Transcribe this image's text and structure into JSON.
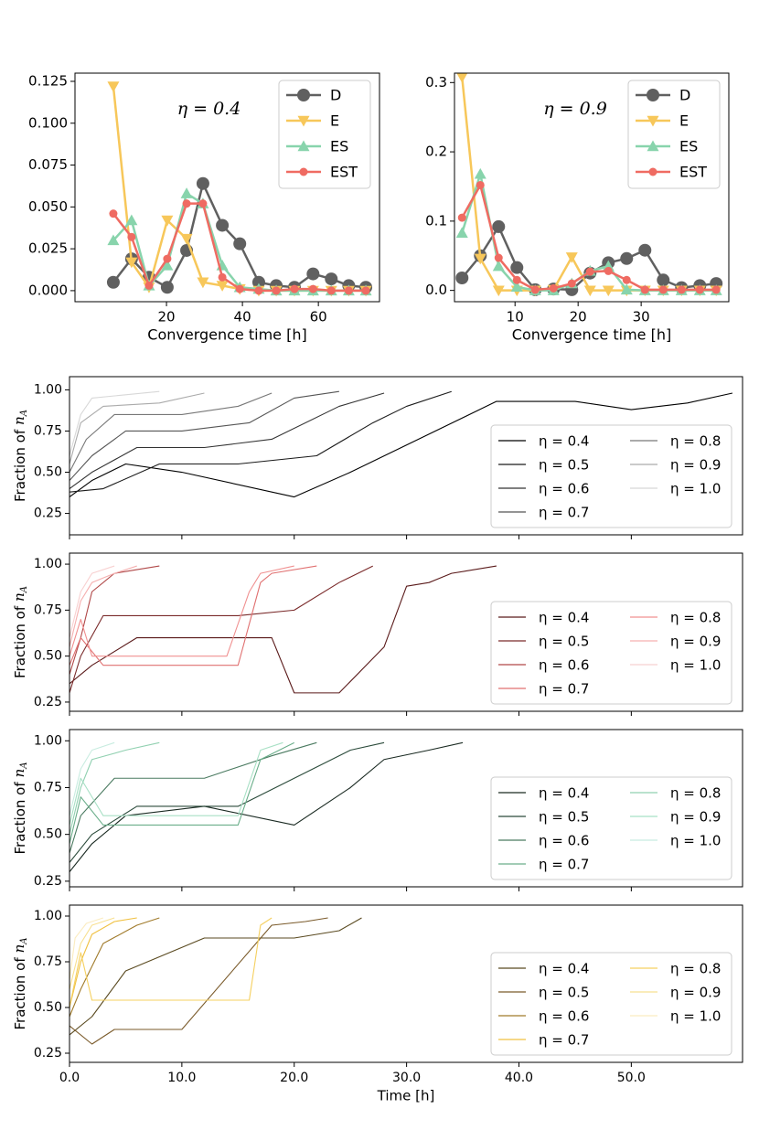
{
  "chart_data": [
    {
      "type": "line",
      "annotation": "η = 0.4",
      "xlabel": "Convergence time [h]",
      "x": [
        6,
        10.8,
        15.4,
        20.2,
        25.3,
        29.6,
        34.7,
        39.3,
        44.3,
        48.9,
        53.7,
        58.6,
        63.4,
        68,
        72.5
      ],
      "xlim": [
        -4.1,
        76.1
      ],
      "xticks": [
        20,
        40,
        60
      ],
      "ylim": [
        -0.0066,
        0.1299
      ],
      "yticks": [
        {
          "value": 0,
          "label": "0.000"
        },
        {
          "value": 0.025,
          "label": "0.025"
        },
        {
          "value": 0.05,
          "label": "0.050"
        },
        {
          "value": 0.075,
          "label": "0.075"
        },
        {
          "value": 0.1,
          "label": "0.100"
        },
        {
          "value": 0.125,
          "label": "0.125"
        }
      ],
      "legend": "upper right",
      "series": [
        {
          "name": "D",
          "color": "#606060",
          "marker": "circle",
          "values": [
            0.005,
            0.019,
            0.008,
            0.002,
            0.024,
            0.064,
            0.039,
            0.028,
            0.005,
            0.003,
            0.002,
            0.01,
            0.007,
            0.003,
            0.002
          ]
        },
        {
          "name": "E",
          "color": "#f7c75a",
          "marker": "triangle-down",
          "values": [
            0.122,
            0.017,
            0.002,
            0.042,
            0.031,
            0.005,
            0.003,
            0.001,
            0,
            0,
            0,
            0,
            0,
            0,
            0
          ]
        },
        {
          "name": "ES",
          "color": "#88d4ac",
          "marker": "triangle-up",
          "values": [
            0.03,
            0.042,
            0.003,
            0.015,
            0.058,
            0.052,
            0.015,
            0.002,
            0.001,
            0,
            0,
            0,
            0,
            0,
            0
          ]
        },
        {
          "name": "EST",
          "color": "#ef6b62",
          "marker": "dot",
          "values": [
            0.046,
            0.032,
            0.003,
            0.019,
            0.052,
            0.052,
            0.008,
            0.001,
            0,
            0,
            0.001,
            0.001,
            0,
            0,
            0
          ]
        }
      ]
    },
    {
      "type": "line",
      "annotation": "η = 0.9",
      "xlabel": "Convergence time [h]",
      "x": [
        1.6,
        4.5,
        7.4,
        10.3,
        13.2,
        16.1,
        19,
        21.9,
        24.8,
        27.7,
        30.6,
        33.5,
        36.4,
        39.3,
        41.9
      ],
      "xlim": [
        0.4,
        43.9
      ],
      "xticks": [
        10,
        20,
        30
      ],
      "ylim": [
        -0.0163,
        0.3136
      ],
      "yticks": [
        {
          "value": 0,
          "label": "0.0"
        },
        {
          "value": 0.1,
          "label": "0.1"
        },
        {
          "value": 0.2,
          "label": "0.2"
        },
        {
          "value": 0.3,
          "label": "0.3"
        }
      ],
      "legend": "upper right",
      "series": [
        {
          "name": "D",
          "color": "#606060",
          "marker": "circle",
          "values": [
            0.018,
            0.05,
            0.092,
            0.033,
            0.001,
            0.002,
            0.001,
            0.025,
            0.04,
            0.046,
            0.058,
            0.015,
            0.004,
            0.007,
            0.01
          ]
        },
        {
          "name": "E",
          "color": "#f7c75a",
          "marker": "triangle-down",
          "values": [
            0.308,
            0.046,
            0,
            0,
            0,
            0.001,
            0.048,
            0,
            0,
            0,
            0,
            0,
            0,
            0,
            0
          ]
        },
        {
          "name": "ES",
          "color": "#88d4ac",
          "marker": "triangle-up",
          "values": [
            0.083,
            0.168,
            0.035,
            0.005,
            0,
            0,
            0.01,
            0.028,
            0.035,
            0.001,
            0,
            0,
            0,
            0,
            0
          ]
        },
        {
          "name": "EST",
          "color": "#ef6b62",
          "marker": "dot",
          "values": [
            0.105,
            0.152,
            0.047,
            0.015,
            0.001,
            0.003,
            0.01,
            0.027,
            0.028,
            0.015,
            0.001,
            0.001,
            0.001,
            0.001,
            0.001
          ]
        }
      ]
    },
    {
      "type": "line",
      "ylabel": "Fraction of",
      "ylabel_var": "n",
      "ylabel_sub": "A",
      "xlim": [
        0,
        59.9
      ],
      "xticks": [
        0,
        10,
        20,
        30,
        40,
        50
      ],
      "xtick_labels": false,
      "ylim": [
        0.12,
        1.08
      ],
      "yticks": [
        {
          "value": 0.25,
          "label": "0.25"
        },
        {
          "value": 0.5,
          "label": "0.50"
        },
        {
          "value": 0.75,
          "label": "0.75"
        },
        {
          "value": 1,
          "label": "1.00"
        }
      ],
      "legend": "lower right",
      "legend_columns": 2,
      "series": [
        {
          "name": "η = 0.4",
          "color": "#000000",
          "x": [
            0,
            2,
            5,
            10,
            20,
            25,
            38,
            45,
            50,
            55,
            59
          ],
          "values": [
            0.35,
            0.45,
            0.55,
            0.5,
            0.35,
            0.5,
            0.93,
            0.93,
            0.88,
            0.92,
            0.98
          ]
        },
        {
          "name": "η = 0.5",
          "color": "#1a1a1a",
          "x": [
            0,
            3,
            8,
            15,
            22,
            27,
            30,
            34
          ],
          "values": [
            0.38,
            0.4,
            0.55,
            0.55,
            0.6,
            0.8,
            0.9,
            0.99
          ]
        },
        {
          "name": "η = 0.6",
          "color": "#333333",
          "x": [
            0,
            2,
            6,
            12,
            18,
            24,
            28
          ],
          "values": [
            0.4,
            0.5,
            0.65,
            0.65,
            0.7,
            0.9,
            0.98
          ]
        },
        {
          "name": "η = 0.7",
          "color": "#555555",
          "x": [
            0,
            2,
            5,
            10,
            16,
            20,
            24
          ],
          "values": [
            0.45,
            0.6,
            0.75,
            0.75,
            0.8,
            0.95,
            0.99
          ]
        },
        {
          "name": "η = 0.8",
          "color": "#777777",
          "x": [
            0,
            1.5,
            4,
            10,
            15,
            18
          ],
          "values": [
            0.5,
            0.7,
            0.85,
            0.85,
            0.9,
            0.98
          ]
        },
        {
          "name": "η = 0.9",
          "color": "#aaaaaa",
          "x": [
            0,
            1,
            3,
            8,
            12
          ],
          "values": [
            0.55,
            0.8,
            0.9,
            0.92,
            0.98
          ]
        },
        {
          "name": "η = 1.0",
          "color": "#d8d8d8",
          "x": [
            0,
            1,
            2,
            5,
            8
          ],
          "values": [
            0.6,
            0.85,
            0.95,
            0.97,
            0.99
          ]
        }
      ]
    },
    {
      "type": "line",
      "ylabel": "Fraction of",
      "ylabel_var": "n",
      "ylabel_sub": "A",
      "xlim": [
        0,
        59.9
      ],
      "xticks": [
        0,
        10,
        20,
        30,
        40,
        50
      ],
      "xtick_labels": false,
      "ylim": [
        0.2,
        1.06
      ],
      "yticks": [
        {
          "value": 0.25,
          "label": "0.25"
        },
        {
          "value": 0.5,
          "label": "0.50"
        },
        {
          "value": 0.75,
          "label": "0.75"
        },
        {
          "value": 1,
          "label": "1.00"
        }
      ],
      "legend": "lower right",
      "legend_columns": 2,
      "series": [
        {
          "name": "η = 0.4",
          "color": "#5a1a1a",
          "x": [
            0,
            2,
            6,
            18,
            20,
            24,
            28,
            30,
            32,
            34,
            38
          ],
          "values": [
            0.35,
            0.45,
            0.6,
            0.6,
            0.3,
            0.3,
            0.55,
            0.88,
            0.9,
            0.95,
            0.99
          ]
        },
        {
          "name": "η = 0.5",
          "color": "#7a2a2a",
          "x": [
            0,
            1,
            3,
            15,
            20,
            24,
            27
          ],
          "values": [
            0.3,
            0.5,
            0.72,
            0.72,
            0.75,
            0.9,
            0.99
          ]
        },
        {
          "name": "η = 0.6",
          "color": "#b04848",
          "x": [
            0,
            1,
            2,
            4,
            6,
            8
          ],
          "values": [
            0.4,
            0.6,
            0.85,
            0.95,
            0.97,
            0.99
          ]
        },
        {
          "name": "η = 0.7",
          "color": "#e07070",
          "x": [
            0,
            1,
            3,
            15,
            17,
            18,
            22
          ],
          "values": [
            0.45,
            0.6,
            0.45,
            0.45,
            0.9,
            0.95,
            0.99
          ]
        },
        {
          "name": "η = 0.8",
          "color": "#f09090",
          "x": [
            0,
            1,
            2,
            14,
            16,
            17,
            20
          ],
          "values": [
            0.5,
            0.7,
            0.5,
            0.5,
            0.85,
            0.95,
            0.99
          ]
        },
        {
          "name": "η = 0.9",
          "color": "#f5b0b0",
          "x": [
            0,
            1,
            2,
            4,
            6
          ],
          "values": [
            0.55,
            0.8,
            0.9,
            0.95,
            0.99
          ]
        },
        {
          "name": "η = 1.0",
          "color": "#f8d0d0",
          "x": [
            0,
            1,
            2,
            4
          ],
          "values": [
            0.6,
            0.85,
            0.95,
            0.99
          ]
        }
      ]
    },
    {
      "type": "line",
      "ylabel": "Fraction of",
      "ylabel_var": "n",
      "ylabel_sub": "A",
      "xlim": [
        0,
        59.9
      ],
      "xticks": [
        0,
        10,
        20,
        30,
        40,
        50
      ],
      "xtick_labels": false,
      "ylim": [
        0.22,
        1.06
      ],
      "yticks": [
        {
          "value": 0.25,
          "label": "0.25"
        },
        {
          "value": 0.5,
          "label": "0.50"
        },
        {
          "value": 0.75,
          "label": "0.75"
        },
        {
          "value": 1,
          "label": "1.00"
        }
      ],
      "legend": "lower right",
      "legend_columns": 2,
      "series": [
        {
          "name": "η = 0.4",
          "color": "#1a2a22",
          "x": [
            0,
            2,
            5,
            12,
            20,
            25,
            28,
            32,
            35
          ],
          "values": [
            0.3,
            0.45,
            0.6,
            0.65,
            0.55,
            0.75,
            0.9,
            0.95,
            0.99
          ]
        },
        {
          "name": "η = 0.5",
          "color": "#2a4a3a",
          "x": [
            0,
            2,
            6,
            15,
            20,
            25,
            28
          ],
          "values": [
            0.35,
            0.5,
            0.65,
            0.65,
            0.8,
            0.95,
            0.99
          ]
        },
        {
          "name": "η = 0.6",
          "color": "#4a7a60",
          "x": [
            0,
            1,
            4,
            12,
            18,
            22
          ],
          "values": [
            0.4,
            0.6,
            0.8,
            0.8,
            0.92,
            0.99
          ]
        },
        {
          "name": "η = 0.7",
          "color": "#6aae8a",
          "x": [
            0,
            1,
            3,
            15,
            17,
            20
          ],
          "values": [
            0.45,
            0.7,
            0.55,
            0.55,
            0.9,
            0.99
          ]
        },
        {
          "name": "η = 0.8",
          "color": "#90d0b0",
          "x": [
            0,
            1,
            2,
            5,
            8
          ],
          "values": [
            0.5,
            0.75,
            0.9,
            0.95,
            0.99
          ]
        },
        {
          "name": "η = 0.9",
          "color": "#a8e0c5",
          "x": [
            0,
            1,
            3,
            15,
            17,
            19
          ],
          "values": [
            0.55,
            0.8,
            0.6,
            0.6,
            0.95,
            0.99
          ]
        },
        {
          "name": "η = 1.0",
          "color": "#c8ece0",
          "x": [
            0,
            1,
            2,
            4
          ],
          "values": [
            0.6,
            0.85,
            0.95,
            0.99
          ]
        }
      ]
    },
    {
      "type": "line",
      "ylabel": "Fraction of",
      "ylabel_var": "n",
      "ylabel_sub": "A",
      "xlabel": "Time [h]",
      "xlim": [
        0,
        59.9
      ],
      "xticks": [
        {
          "value": 0,
          "label": "0.0"
        },
        {
          "value": 10,
          "label": "10.0"
        },
        {
          "value": 20,
          "label": "20.0"
        },
        {
          "value": 30,
          "label": "30.0"
        },
        {
          "value": 40,
          "label": "40.0"
        },
        {
          "value": 50,
          "label": "50.0"
        }
      ],
      "ylim": [
        0.2,
        1.06
      ],
      "yticks": [
        {
          "value": 0.25,
          "label": "0.25"
        },
        {
          "value": 0.5,
          "label": "0.50"
        },
        {
          "value": 0.75,
          "label": "0.75"
        },
        {
          "value": 1,
          "label": "1.00"
        }
      ],
      "legend": "lower right",
      "legend_columns": 2,
      "series": [
        {
          "name": "η = 0.4",
          "color": "#5a4a20",
          "x": [
            0,
            2,
            5,
            12,
            20,
            24,
            26
          ],
          "values": [
            0.35,
            0.45,
            0.7,
            0.88,
            0.88,
            0.92,
            0.99
          ]
        },
        {
          "name": "η = 0.5",
          "color": "#7a5a2a",
          "x": [
            0,
            2,
            4,
            10,
            18,
            21,
            23
          ],
          "values": [
            0.4,
            0.3,
            0.38,
            0.38,
            0.95,
            0.97,
            0.99
          ]
        },
        {
          "name": "η = 0.6",
          "color": "#a07a2a",
          "x": [
            0,
            1,
            3,
            6,
            8
          ],
          "values": [
            0.45,
            0.6,
            0.85,
            0.95,
            0.99
          ]
        },
        {
          "name": "η = 0.7",
          "color": "#f0c040",
          "x": [
            0,
            1,
            2,
            4,
            6
          ],
          "values": [
            0.5,
            0.75,
            0.9,
            0.97,
            0.99
          ]
        },
        {
          "name": "η = 0.8",
          "color": "#f5d060",
          "x": [
            0,
            1,
            2,
            16,
            17,
            18
          ],
          "values": [
            0.5,
            0.8,
            0.54,
            0.54,
            0.95,
            0.99
          ]
        },
        {
          "name": "η = 0.9",
          "color": "#f8e090",
          "x": [
            0,
            1,
            2,
            4
          ],
          "values": [
            0.6,
            0.85,
            0.95,
            0.99
          ]
        },
        {
          "name": "η = 1.0",
          "color": "#fbecc0",
          "x": [
            0,
            0.5,
            1.5,
            3
          ],
          "values": [
            0.65,
            0.88,
            0.96,
            0.99
          ]
        }
      ]
    }
  ]
}
